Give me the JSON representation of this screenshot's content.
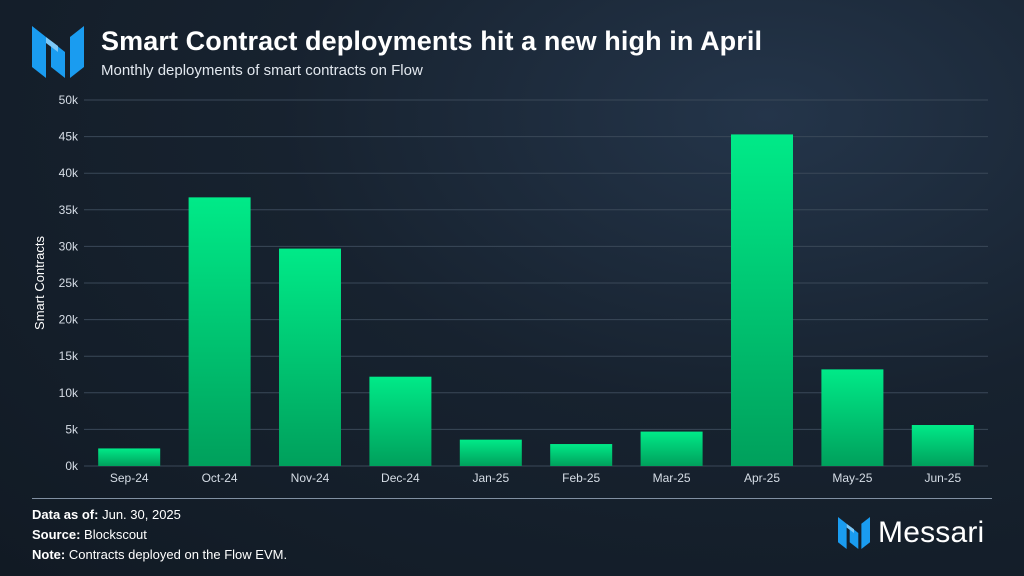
{
  "header": {
    "title": "Smart Contract deployments hit a new high in April",
    "subtitle": "Monthly deployments of smart contracts on Flow"
  },
  "footer": {
    "data_as_of_label": "Data as of:",
    "data_as_of_value": "Jun. 30, 2025",
    "source_label": "Source:",
    "source_value": "Blockscout",
    "note_label": "Note:",
    "note_value": "Contracts deployed on the Flow EVM."
  },
  "brand": {
    "name": "Messari",
    "logo_icon": "messari-logo-icon"
  },
  "colors": {
    "bar_top": "#00ea88",
    "bar_bottom": "#00a05c",
    "grid": "#3a4858",
    "logo": "#1a9cf0"
  },
  "chart_data": {
    "type": "bar",
    "title": "Smart Contract deployments hit a new high in April",
    "subtitle": "Monthly deployments of smart contracts on Flow",
    "xlabel": "",
    "ylabel": "Smart Contracts",
    "categories": [
      "Sep-24",
      "Oct-24",
      "Nov-24",
      "Dec-24",
      "Jan-25",
      "Feb-25",
      "Mar-25",
      "Apr-25",
      "May-25",
      "Jun-25"
    ],
    "values": [
      2400,
      36700,
      29700,
      12200,
      3600,
      3000,
      4700,
      45300,
      13200,
      5600
    ],
    "ylim": [
      0,
      50000
    ],
    "yticks": [
      0,
      5000,
      10000,
      15000,
      20000,
      25000,
      30000,
      35000,
      40000,
      45000,
      50000
    ],
    "ytick_labels": [
      "0k",
      "5k",
      "10k",
      "15k",
      "20k",
      "25k",
      "30k",
      "35k",
      "40k",
      "45k",
      "50k"
    ],
    "grid": true,
    "legend": "none"
  }
}
